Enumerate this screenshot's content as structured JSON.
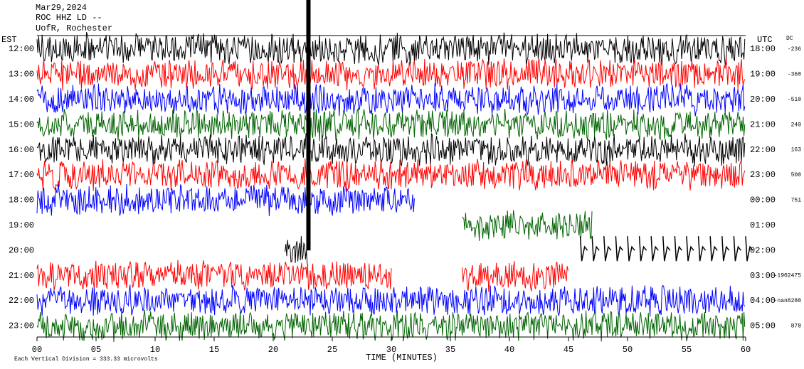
{
  "chart_data": {
    "type": "helicorder",
    "title": "Mar29,2024",
    "subtitle": "ROC HHZ LD --",
    "station": "UofR, Rochester",
    "left_axis_label": "EST",
    "right_axis_label": "UTC",
    "dc_label": "DC",
    "rows": [
      {
        "est": "12:00",
        "utc": "18:00",
        "dc": "-236"
      },
      {
        "est": "13:00",
        "utc": "19:00",
        "dc": "-360"
      },
      {
        "est": "14:00",
        "utc": "20:00",
        "dc": "-510"
      },
      {
        "est": "15:00",
        "utc": "21:00",
        "dc": "249"
      },
      {
        "est": "16:00",
        "utc": "22:00",
        "dc": "163"
      },
      {
        "est": "17:00",
        "utc": "23:00",
        "dc": "500"
      },
      {
        "est": "18:00",
        "utc": "00:00",
        "dc": "751"
      },
      {
        "est": "19:00",
        "utc": "01:00",
        "dc": null
      },
      {
        "est": "20:00",
        "utc": "02:00",
        "dc": null
      },
      {
        "est": "21:00",
        "utc": "03:00",
        "dc": "-1902475"
      },
      {
        "est": "22:00",
        "utc": "04:00",
        "dc": "-nan8280"
      },
      {
        "est": "23:00",
        "utc": "05:00",
        "dc": "878"
      }
    ],
    "x_label": "TIME (MINUTES)",
    "xlim": [
      0,
      60
    ],
    "xticks": [
      {
        "value": 0,
        "label": "00"
      },
      {
        "value": 5,
        "label": "05"
      },
      10,
      15,
      20,
      25,
      30,
      35,
      40,
      45,
      50,
      55,
      60
    ],
    "footnote": "Each Vertical Division = 333.33 microvolts",
    "colors": [
      "#000000",
      "#ff0000",
      "#0000ff",
      "#006400"
    ]
  }
}
